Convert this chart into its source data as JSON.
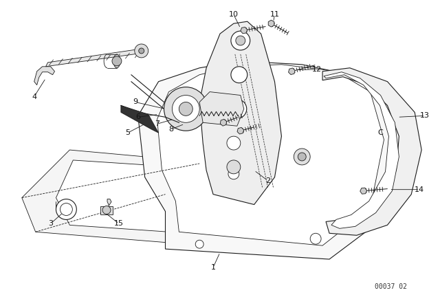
{
  "bg_color": "#ffffff",
  "line_color": "#1a1a1a",
  "ref_code": "00037 02",
  "lw_main": 1.1,
  "lw_thin": 0.6,
  "lw_med": 0.8
}
